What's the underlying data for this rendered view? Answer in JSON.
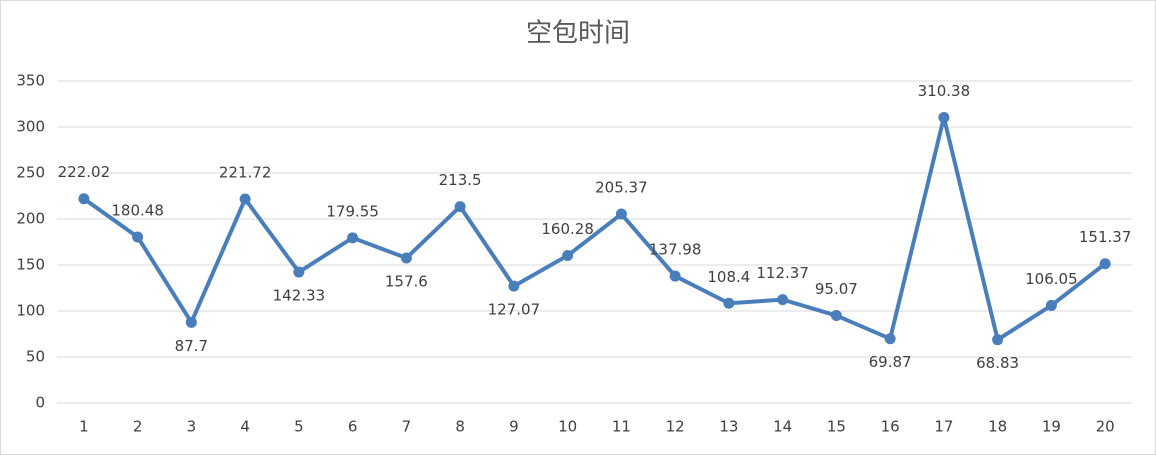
{
  "chart_data": {
    "type": "line",
    "title": "空包时间",
    "categories": [
      "1",
      "2",
      "3",
      "4",
      "5",
      "6",
      "7",
      "8",
      "9",
      "10",
      "11",
      "12",
      "13",
      "14",
      "15",
      "16",
      "17",
      "18",
      "19",
      "20"
    ],
    "series": [
      {
        "name": "空包时间",
        "color": "#4a7ebb",
        "values": [
          222.02,
          180.48,
          87.7,
          221.72,
          142.33,
          179.55,
          157.6,
          213.5,
          127.07,
          160.28,
          205.37,
          137.98,
          108.4,
          112.37,
          95.07,
          69.87,
          310.38,
          68.83,
          106.05,
          151.37
        ]
      }
    ],
    "ylim": [
      0,
      350
    ],
    "yticks": [
      0,
      50,
      100,
      150,
      200,
      250,
      300,
      350
    ],
    "grid": true
  }
}
